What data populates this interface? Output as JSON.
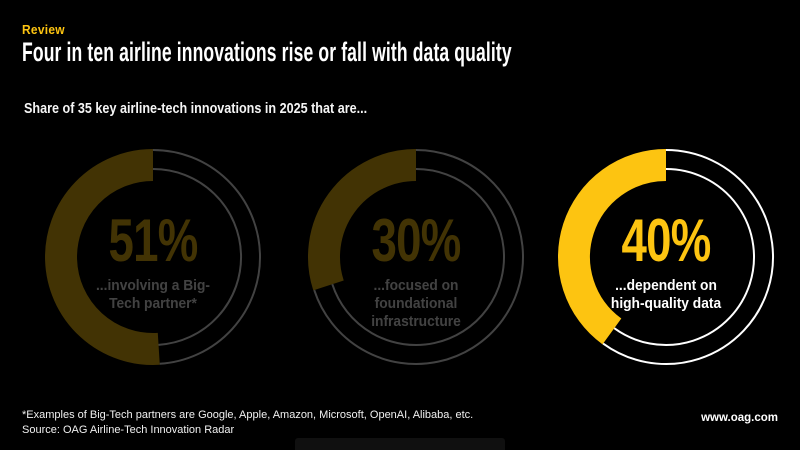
{
  "page": {
    "kicker": "Review",
    "title": "Four in ten airline innovations rise or fall with data quality",
    "subtitle": "Share of 35 key airline-tech innovations in 2025 that are...",
    "footnote": "*Examples of Big-Tech partners are Google, Apple, Amazon, Microsoft, OpenAI, Alibaba, etc.",
    "source": "Source: OAG Airline-Tech Innovation Radar",
    "website": "www.oag.com"
  },
  "colors": {
    "background": "#000000",
    "accent_yellow": "#FDC411",
    "text_white": "#FFFFFF"
  },
  "chart_data": {
    "type": "pie",
    "subtype": "donut",
    "title": "Share of 35 key airline-tech innovations in 2025 that are...",
    "unit": "%",
    "donuts": [
      {
        "value": 51,
        "value_label": "51%",
        "label": "...involving a Big-Tech partner*",
        "caption": "...involving a Big-\nTech partner*",
        "highlighted": false
      },
      {
        "value": 30,
        "value_label": "30%",
        "label": "...focused on foundational infrastructure",
        "caption": "...focused on\nfoundational\ninfrastructure",
        "highlighted": false
      },
      {
        "value": 40,
        "value_label": "40%",
        "label": "...dependent on high-quality data",
        "caption": "...dependent on\nhigh-quality data",
        "highlighted": true
      }
    ],
    "legend_position": "none",
    "grid": false
  }
}
